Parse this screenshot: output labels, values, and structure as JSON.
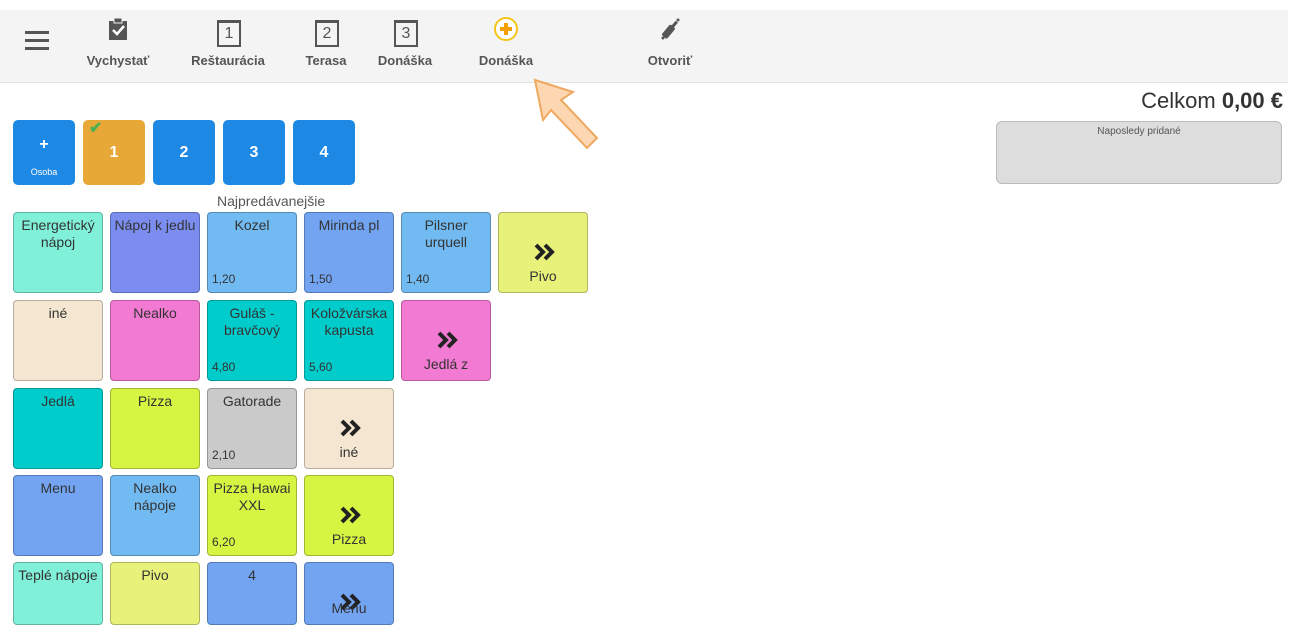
{
  "toolbar": {
    "items": [
      {
        "label": "Vychystať"
      },
      {
        "icon": "1",
        "label": "Reštaurácia"
      },
      {
        "icon": "2",
        "label": "Terasa"
      },
      {
        "icon": "3",
        "label": "Donáška"
      },
      {
        "label": "Donáška"
      },
      {
        "label": "Otvoriť"
      }
    ]
  },
  "total": {
    "label": "Celkom",
    "amount": "0,00 €"
  },
  "recent": {
    "title": "Naposledy pridané"
  },
  "persons": {
    "add": {
      "icon": "+",
      "label": "Osoba"
    },
    "items": [
      "1",
      "2",
      "3",
      "4"
    ]
  },
  "section_title": "Najpredávanejšie",
  "tiles": [
    [
      {
        "label": "Energetický nápoj",
        "color": "#80f0d8"
      },
      {
        "label": "Nápoj k jedlu",
        "color": "#7b8ef0"
      },
      {
        "label": "Kozel",
        "price": "1,20",
        "color": "#72baf2"
      },
      {
        "label": "Mirinda pl",
        "price": "1,50",
        "color": "#72a4f2"
      },
      {
        "label": "Pilsner urquell",
        "price": "1,40",
        "color": "#72baf2"
      },
      {
        "label": "Pivo",
        "chevron": true,
        "color": "#e8f27a"
      }
    ],
    [
      {
        "label": "iné",
        "color": "#f5e6d2"
      },
      {
        "label": "Nealko",
        "color": "#f27ad2"
      },
      {
        "label": "Guláš - bravčový",
        "price": "4,80",
        "color": "#00cccc"
      },
      {
        "label": "Koložvárska kapusta",
        "price": "5,60",
        "color": "#00cccc"
      },
      {
        "label": "Jedlá z",
        "chevron": true,
        "color": "#f27ad2"
      }
    ],
    [
      {
        "label": "Jedlá",
        "color": "#00cccc"
      },
      {
        "label": "Pizza",
        "color": "#d6f542"
      },
      {
        "label": "Gatorade",
        "price": "2,10",
        "color": "#cacaca"
      },
      {
        "label": "iné",
        "chevron": true,
        "color": "#f5e6d2"
      }
    ],
    [
      {
        "label": "Menu",
        "color": "#72a4f2"
      },
      {
        "label": "Nealko nápoje",
        "color": "#72baf2"
      },
      {
        "label": "Pizza Hawai XXL",
        "price": "6,20",
        "color": "#d6f542"
      },
      {
        "label": "Pizza",
        "chevron": true,
        "color": "#d6f542"
      }
    ],
    [
      {
        "label": "Teplé nápoje",
        "color": "#80f0d8"
      },
      {
        "label": "Pivo",
        "color": "#e8f27a"
      },
      {
        "label": "4",
        "color": "#72a4f2"
      },
      {
        "label": "Menu",
        "chevron": true,
        "color": "#72a4f2"
      }
    ]
  ]
}
